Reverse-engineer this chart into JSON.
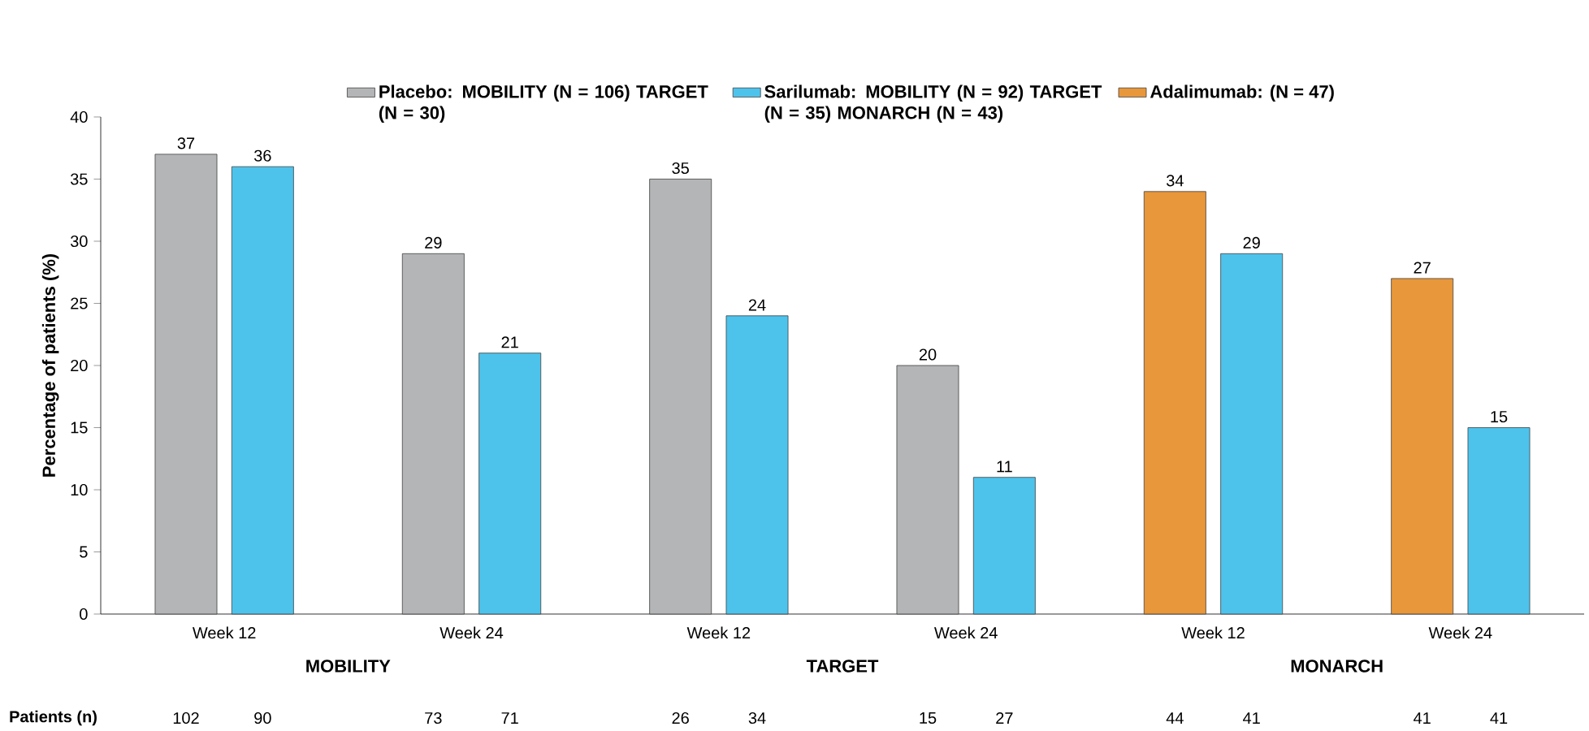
{
  "chart_data": {
    "type": "bar",
    "ylabel": "Percentage of patients (%)",
    "categories": [
      "Week 12",
      "Week 24",
      "Week 12",
      "Week 24",
      "Week 12",
      "Week 24"
    ],
    "series": [
      {
        "name": "Placebo: MOBILITY (N = 106) TARGET (N = 30)",
        "color": "#b3b5b6",
        "values": [
          37,
          29,
          35,
          20,
          null,
          null
        ]
      },
      {
        "name": "Sarilumab: MOBILITY (N = 92) TARGET (N = 35) MONARCH (N = 43)",
        "color": "#4dc3ec",
        "values": [
          36,
          21,
          24,
          11,
          29,
          15
        ]
      },
      {
        "name": "Adalimumab: (N = 47)",
        "color": "#e8973a",
        "values": [
          null,
          null,
          null,
          null,
          34,
          27
        ]
      }
    ],
    "ylim": [
      0,
      40
    ],
    "yticks": [
      0,
      5,
      10,
      15,
      20,
      25,
      30,
      35,
      40
    ],
    "data_labels": true,
    "legend": "top",
    "grid": false,
    "annotations": [
      "MOBILITY",
      "TARGET",
      "MONARCH",
      "Patients (n)",
      "102",
      "90",
      "73",
      "71",
      "26",
      "34",
      "15",
      "27",
      "44",
      "41",
      "41",
      "41"
    ]
  }
}
